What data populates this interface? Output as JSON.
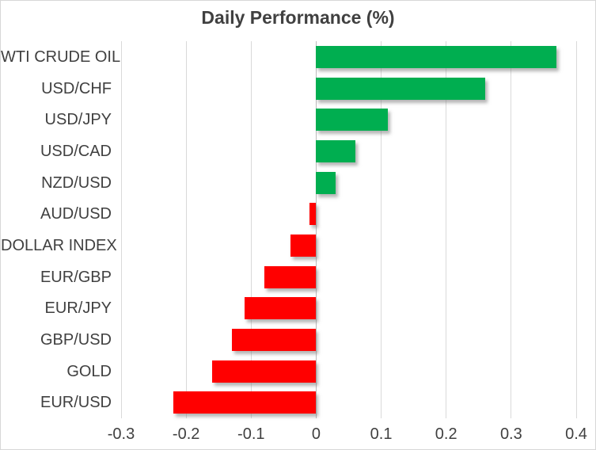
{
  "chart_data": {
    "type": "bar",
    "orientation": "horizontal",
    "title": "Daily Performance (%)",
    "categories": [
      "WTI CRUDE OIL",
      "USD/CHF",
      "USD/JPY",
      "USD/CAD",
      "NZD/USD",
      "AUD/USD",
      "DOLLAR INDEX",
      "EUR/GBP",
      "EUR/JPY",
      "GBP/USD",
      "GOLD",
      "EUR/USD"
    ],
    "values": [
      0.37,
      0.26,
      0.11,
      0.06,
      0.03,
      -0.01,
      -0.04,
      -0.08,
      -0.11,
      -0.13,
      -0.16,
      -0.22
    ],
    "xlim": [
      -0.3,
      0.4
    ],
    "xticks": [
      -0.3,
      -0.2,
      -0.1,
      0,
      0.1,
      0.2,
      0.3,
      0.4
    ],
    "xtick_labels": [
      "-0.3",
      "-0.2",
      "-0.1",
      "0",
      "0.1",
      "0.2",
      "0.3",
      "0.4"
    ],
    "xlabel": "",
    "ylabel": "",
    "grid": true,
    "legend": "none",
    "colors": {
      "positive": "#00AE50",
      "negative": "#FF0000",
      "gridline": "#D9D9D9",
      "zero_line": "#BDBDBD",
      "text": "#404040"
    }
  }
}
